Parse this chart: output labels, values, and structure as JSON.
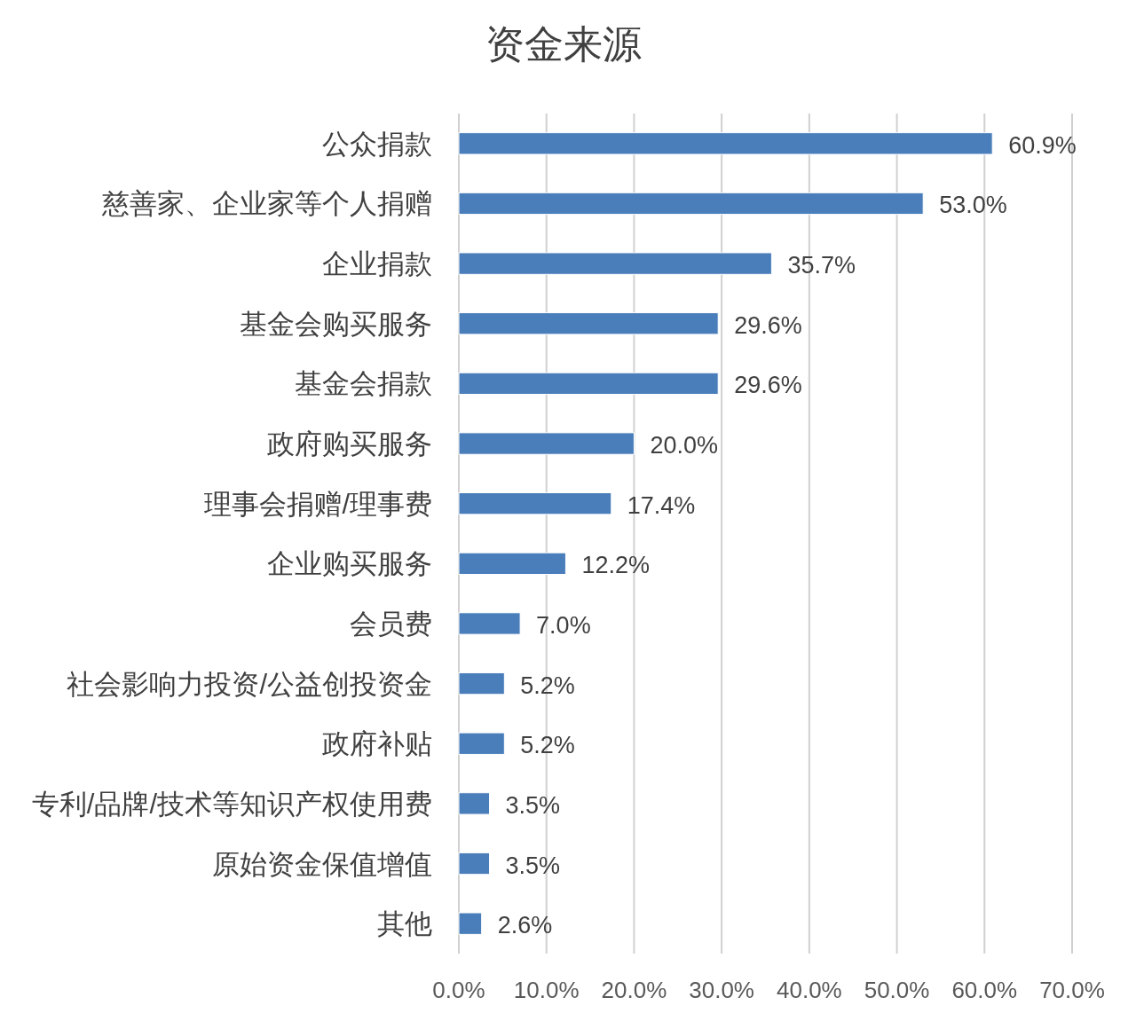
{
  "chart_data": {
    "type": "bar",
    "orientation": "horizontal",
    "title": "资金来源",
    "categories": [
      "公众捐款",
      "慈善家、企业家等个人捐赠",
      "企业捐款",
      "基金会购买服务",
      "基金会捐款",
      "政府购买服务",
      "理事会捐赠/理事费",
      "企业购买服务",
      "会员费",
      "社会影响力投资/公益创投资金",
      "政府补贴",
      "专利/品牌/技术等知识产权使用费",
      "原始资金保值增值",
      "其他"
    ],
    "values": [
      60.9,
      53.0,
      35.7,
      29.6,
      29.6,
      20.0,
      17.4,
      12.2,
      7.0,
      5.2,
      5.2,
      3.5,
      3.5,
      2.6
    ],
    "value_labels": [
      "60.9%",
      "53.0%",
      "35.7%",
      "29.6%",
      "29.6%",
      "20.0%",
      "17.4%",
      "12.2%",
      "7.0%",
      "5.2%",
      "5.2%",
      "3.5%",
      "3.5%",
      "2.6%"
    ],
    "color": "#4a7ebb",
    "xlim": [
      0,
      70
    ],
    "xticks": [
      {
        "value": 0,
        "label": "0.0%"
      },
      {
        "value": 10,
        "label": "10.0%"
      },
      {
        "value": 20,
        "label": "20.0%"
      },
      {
        "value": 30,
        "label": "30.0%"
      },
      {
        "value": 40,
        "label": "40.0%"
      },
      {
        "value": 50,
        "label": "50.0%"
      },
      {
        "value": 60,
        "label": "60.0%"
      },
      {
        "value": 70,
        "label": "70.0%"
      }
    ],
    "grid": "x"
  }
}
